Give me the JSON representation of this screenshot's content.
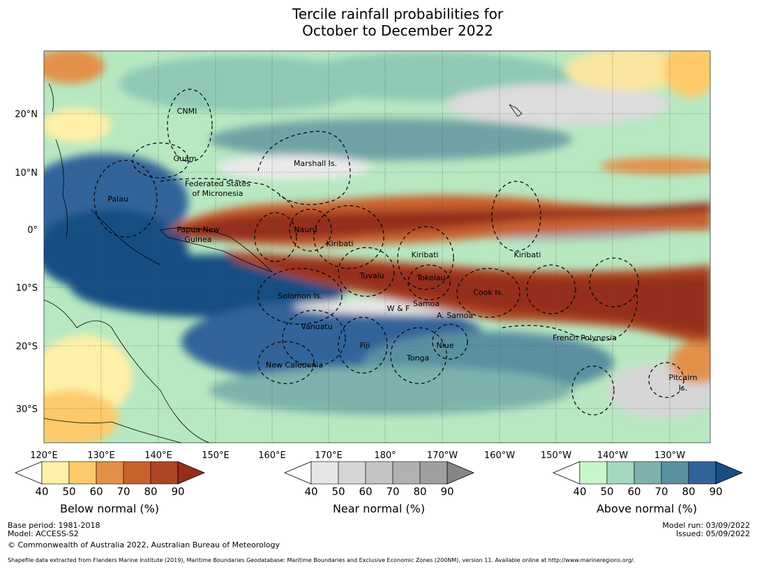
{
  "title": {
    "line1": "Tercile rainfall probabilities for",
    "line2": "October to December 2022"
  },
  "map": {
    "lat_labels": [
      "20°N",
      "10°N",
      "0°",
      "10°S",
      "20°S",
      "30°S"
    ],
    "lon_labels": [
      "120°E",
      "130°E",
      "140°E",
      "150°E",
      "160°E",
      "170°E",
      "180°",
      "170°W",
      "160°W",
      "150°W",
      "140°W",
      "130°W"
    ],
    "regions": [
      "CNMI",
      "Guam",
      "Marshall Is.",
      "Federated States",
      "of Micronesia",
      "Palau",
      "Papua New",
      "Guinea",
      "Nauru",
      "Kiribati",
      "Kiribati",
      "Kiribati",
      "Tuvalu",
      "Tokelau",
      "Cook Is.",
      "Solomon Is.",
      "Samoa",
      "W & F",
      "A. Samoa",
      "Vanuatu",
      "Fiji",
      "Niue",
      "Tonga",
      "French Polynesia",
      "New Caledonia",
      "Pitcairn",
      "Is."
    ]
  },
  "colorbars": [
    {
      "title": "Below normal (%)",
      "ticks": [
        "40",
        "50",
        "60",
        "70",
        "80",
        "90"
      ],
      "colors": [
        "#fff0a8",
        "#fdca6b",
        "#e39148",
        "#c9612d",
        "#ad4524",
        "#952e1b"
      ]
    },
    {
      "title": "Near normal (%)",
      "ticks": [
        "40",
        "50",
        "60",
        "70",
        "80",
        "90"
      ],
      "colors": [
        "#e6e6e6",
        "#d6d6d6",
        "#c4c4c4",
        "#b1b1b1",
        "#9f9f9f",
        "#868686"
      ]
    },
    {
      "title": "Above normal (%)",
      "ticks": [
        "40",
        "50",
        "60",
        "70",
        "80",
        "90"
      ],
      "colors": [
        "#c9f5cc",
        "#a3d9bf",
        "#7db3ac",
        "#5a90a0",
        "#30649a",
        "#174d83"
      ]
    }
  ],
  "footer": {
    "base_period": "Base period: 1981-2018",
    "model": "Model: ACCESS-S2",
    "copyright": "© Commonwealth of Australia 2022, Australian Bureau of Meteorology",
    "model_run": "Model run: 03/09/2022",
    "issued": "Issued: 05/09/2022",
    "shapefile": "Shapefile data extracted from Flanders Marine Institute (2019), Maritime Boundaries Geodatabase: Maritime Boundaries and Exclusive Economic Zones (200NM), version 11. Available online at http://www.marineregions.org/."
  }
}
